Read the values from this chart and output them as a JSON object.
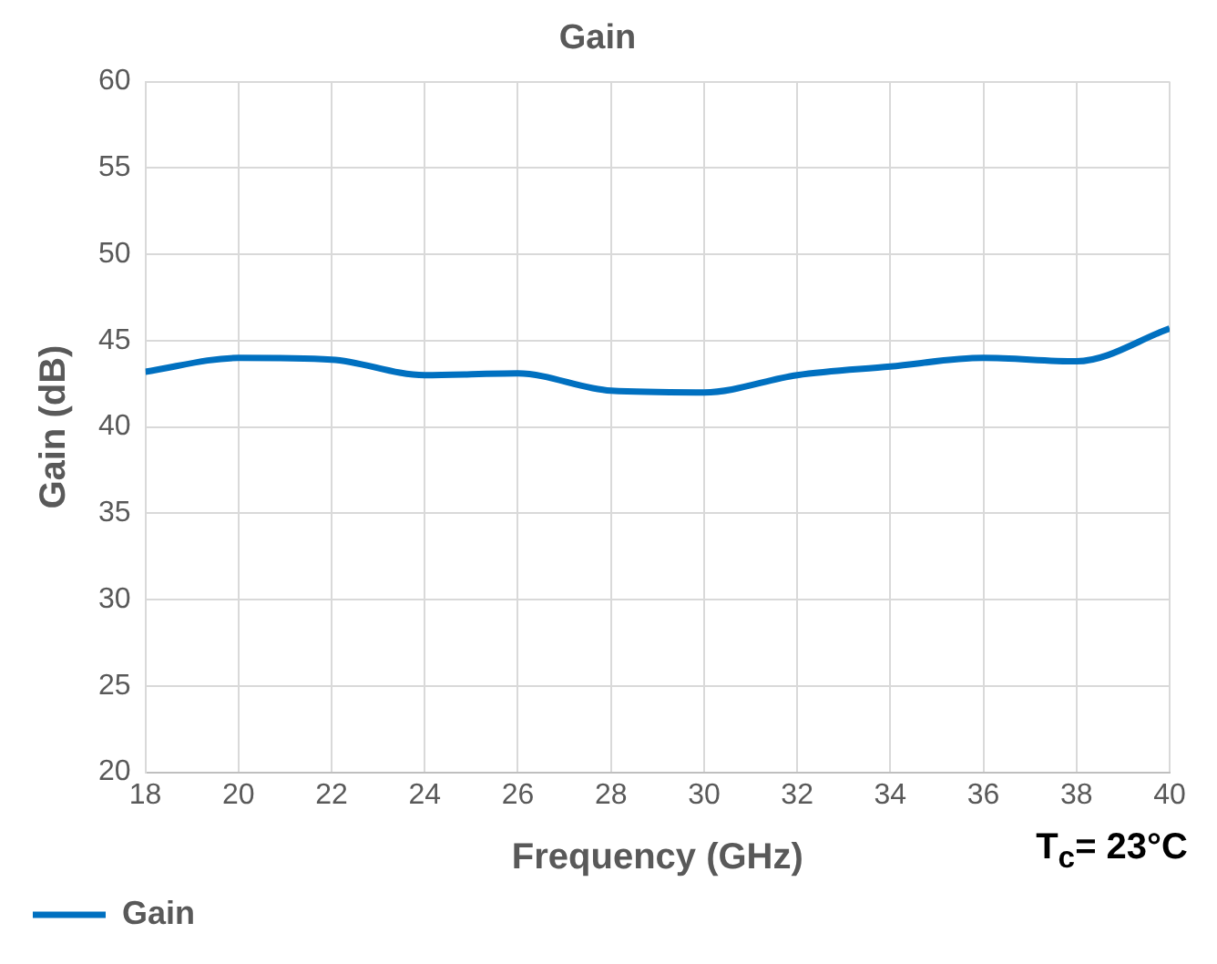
{
  "chart_data": {
    "type": "line",
    "title": "Gain",
    "xlabel": "Frequency (GHz)",
    "ylabel": "Gain (dB)",
    "annotations": [
      "T$_{c}$= 23°C"
    ],
    "x": [
      18,
      20,
      22,
      24,
      26,
      28,
      30,
      32,
      34,
      36,
      38,
      40
    ],
    "series": [
      {
        "name": "Gain",
        "color": "#0070c0",
        "values": [
          43.2,
          44.0,
          43.9,
          43.0,
          43.1,
          42.1,
          42.0,
          43.0,
          43.5,
          44.0,
          43.8,
          45.7
        ]
      }
    ],
    "xlim": [
      18,
      40
    ],
    "xticks": [
      18,
      20,
      22,
      24,
      26,
      28,
      30,
      32,
      34,
      36,
      38,
      40
    ],
    "ylim": [
      20,
      60
    ],
    "yticks": [
      20,
      25,
      30,
      35,
      40,
      45,
      50,
      55,
      60
    ],
    "grid": true,
    "legend": "bottom left",
    "marker": "none",
    "line_style": "solid"
  }
}
